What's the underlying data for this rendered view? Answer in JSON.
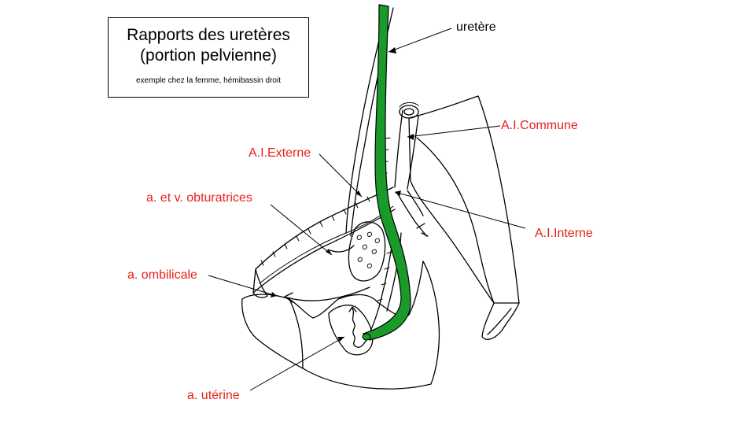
{
  "title": {
    "line1": "Rapports des uretères",
    "line2": "(portion pelvienne)",
    "subtitle": "exemple chez la femme, hémibassin droit"
  },
  "labels": {
    "uretere": "uretère",
    "ai_commune": "A.I.Commune",
    "ai_externe": "A.I.Externe",
    "obturatrices": "a. et v. obturatrices",
    "ai_interne": "A.I.Interne",
    "ombilicale": "a. ombilicale",
    "uterine": "a. utérine"
  },
  "colors": {
    "ureter": "#1a9a2a",
    "label_red": "#e8211a",
    "line": "#000000"
  }
}
